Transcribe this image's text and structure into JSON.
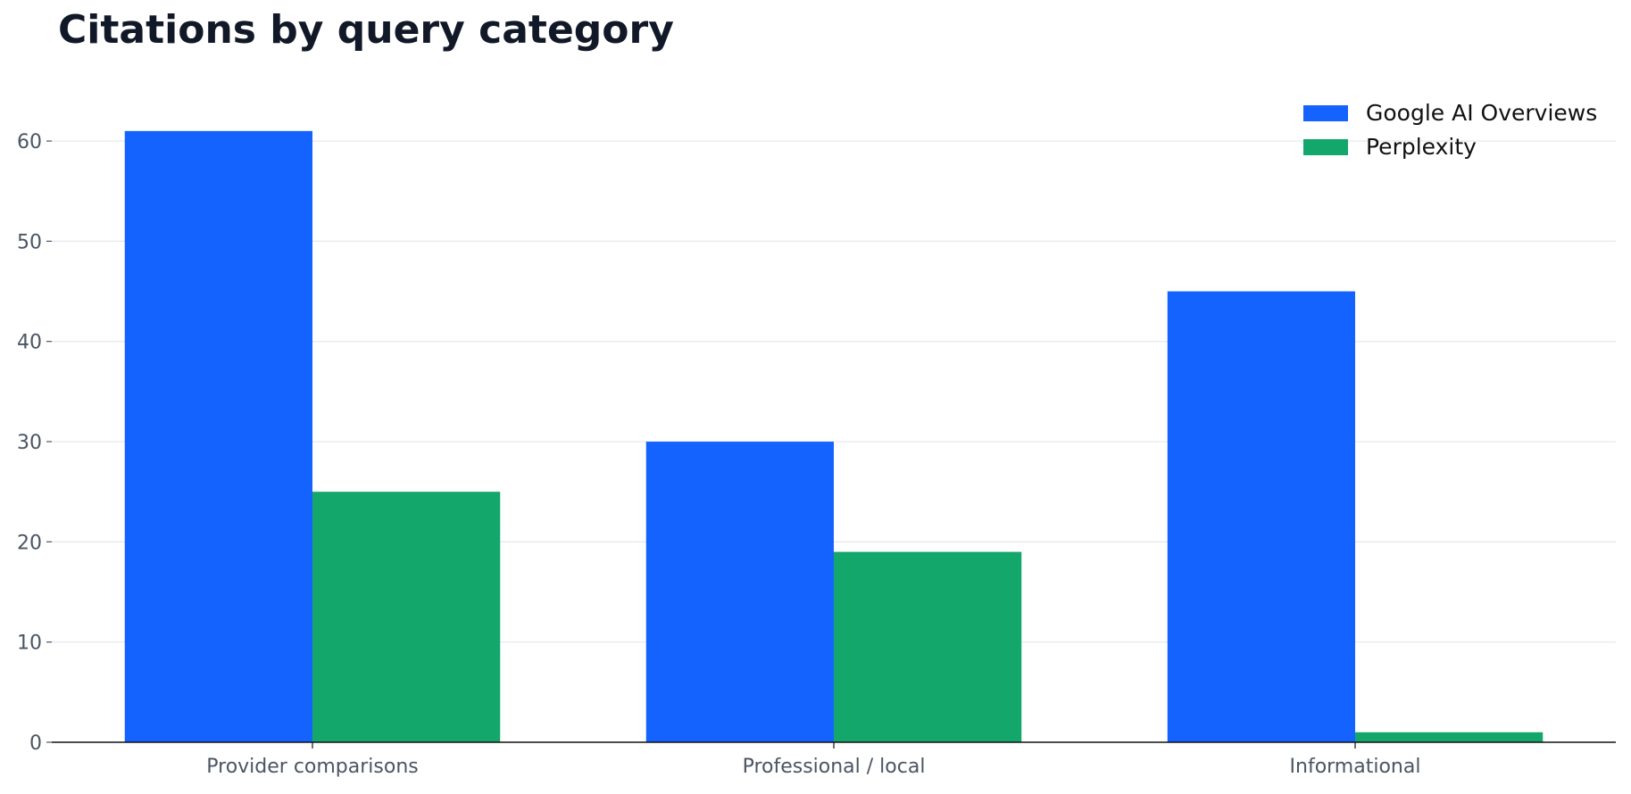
{
  "chart_data": {
    "type": "bar",
    "title": "Citations by query category",
    "xlabel": "",
    "ylabel": "",
    "categories": [
      "Provider comparisons",
      "Professional / local",
      "Informational"
    ],
    "series": [
      {
        "name": "Google AI Overviews",
        "color": "#1463ff",
        "values": [
          61,
          30,
          45
        ]
      },
      {
        "name": "Perplexity",
        "color": "#14a76c",
        "values": [
          25,
          19,
          1
        ]
      }
    ],
    "ylim": [
      0,
      62.5
    ],
    "yticks": [
      0,
      10,
      20,
      30,
      40,
      50,
      60
    ],
    "grid": true,
    "legend_position": "top-right",
    "colors": {
      "grid": "#e5e7eb",
      "axis": "#111111",
      "tick_text": "#4b5563",
      "title": "#111827"
    }
  }
}
